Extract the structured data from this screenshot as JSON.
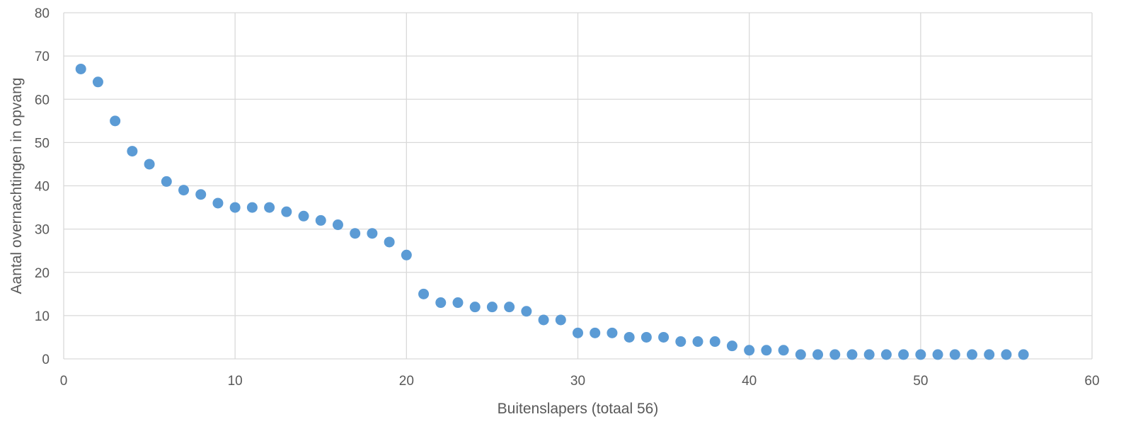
{
  "chart_data": {
    "type": "scatter",
    "title": "",
    "xlabel": "Buitenslapers (totaal 56)",
    "ylabel": "Aantal overnachtingen in opvang",
    "xlim": [
      0,
      60
    ],
    "ylim": [
      0,
      80
    ],
    "x_ticks": [
      0,
      10,
      20,
      30,
      40,
      50,
      60
    ],
    "y_ticks": [
      0,
      10,
      20,
      30,
      40,
      50,
      60,
      70,
      80
    ],
    "grid": true,
    "legend": "none",
    "marker_color": "#5b9bd5",
    "series": [
      {
        "x": [
          1,
          2,
          3,
          4,
          5,
          6,
          7,
          8,
          9,
          10,
          11,
          12,
          13,
          14,
          15,
          16,
          17,
          18,
          19,
          20,
          21,
          22,
          23,
          24,
          25,
          26,
          27,
          28,
          29,
          30,
          31,
          32,
          33,
          34,
          35,
          36,
          37,
          38,
          39,
          40,
          41,
          42,
          43,
          44,
          45,
          46,
          47,
          48,
          49,
          50,
          51,
          52,
          53,
          54,
          55,
          56
        ],
        "y": [
          67,
          64,
          55,
          48,
          45,
          41,
          39,
          38,
          36,
          35,
          35,
          35,
          34,
          33,
          32,
          31,
          29,
          29,
          27,
          24,
          15,
          13,
          13,
          12,
          12,
          12,
          11,
          9,
          9,
          6,
          6,
          6,
          5,
          5,
          5,
          4,
          4,
          4,
          3,
          2,
          2,
          2,
          1,
          1,
          1,
          1,
          1,
          1,
          1,
          1,
          1,
          1,
          1,
          1,
          1,
          1
        ]
      }
    ]
  }
}
